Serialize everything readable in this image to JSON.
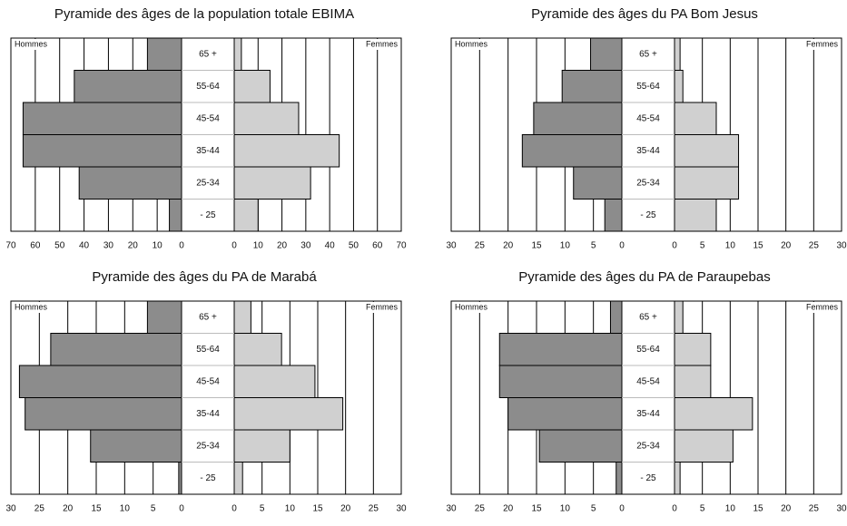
{
  "chart_data": [
    {
      "type": "pyramid",
      "title": "Pyramide  des âges de la population totale EBIMA",
      "categories": [
        "65 +",
        "55-64",
        "45-54",
        "35-44",
        "25-34",
        "- 25"
      ],
      "series": [
        {
          "name": "Hommes",
          "color": "#8c8c8c",
          "values": [
            14,
            44,
            65,
            65,
            42,
            5
          ]
        },
        {
          "name": "Femmes",
          "color": "#d0d0d0",
          "values": [
            3,
            15,
            27,
            44,
            32,
            10
          ]
        }
      ],
      "xlim": [
        0,
        70
      ],
      "xticks": [
        0,
        10,
        20,
        30,
        40,
        50,
        60,
        70
      ],
      "grid": true
    },
    {
      "type": "pyramid",
      "title": "Pyramide  des âges du PA Bom Jesus",
      "categories": [
        "65 +",
        "55-64",
        "45-54",
        "35-44",
        "25-34",
        "- 25"
      ],
      "series": [
        {
          "name": "Hommes",
          "color": "#8c8c8c",
          "values": [
            5.5,
            10.5,
            15.5,
            17.5,
            8.5,
            3
          ]
        },
        {
          "name": "Femmes",
          "color": "#d0d0d0",
          "values": [
            1,
            1.5,
            7.5,
            11.5,
            11.5,
            7.5
          ]
        }
      ],
      "xlim": [
        0,
        30
      ],
      "xticks": [
        0,
        5,
        10,
        15,
        20,
        25,
        30
      ],
      "grid": true
    },
    {
      "type": "pyramid",
      "title": "Pyramide  des âges du PA de Marabá",
      "categories": [
        "65 +",
        "55-64",
        "45-54",
        "35-44",
        "25-34",
        "- 25"
      ],
      "series": [
        {
          "name": "Hommes",
          "color": "#8c8c8c",
          "values": [
            6,
            23,
            28.5,
            27.5,
            16,
            0.5
          ]
        },
        {
          "name": "Femmes",
          "color": "#d0d0d0",
          "values": [
            3,
            8.5,
            14.5,
            19.5,
            10,
            1.5
          ]
        }
      ],
      "xlim": [
        0,
        30
      ],
      "xticks": [
        0,
        5,
        10,
        15,
        20,
        25,
        30
      ],
      "grid": true
    },
    {
      "type": "pyramid",
      "title": "Pyramide  des âges du PA de Paraupebas",
      "categories": [
        "65 +",
        "55-64",
        "45-54",
        "35-44",
        "25-34",
        "- 25"
      ],
      "series": [
        {
          "name": "Hommes",
          "color": "#8c8c8c",
          "values": [
            2,
            21.5,
            21.5,
            20,
            14.5,
            1
          ]
        },
        {
          "name": "Femmes",
          "color": "#d0d0d0",
          "values": [
            1.5,
            6.5,
            6.5,
            14,
            10.5,
            1
          ]
        }
      ],
      "xlim": [
        0,
        30
      ],
      "xticks": [
        0,
        5,
        10,
        15,
        20,
        25,
        30
      ],
      "grid": true
    }
  ]
}
